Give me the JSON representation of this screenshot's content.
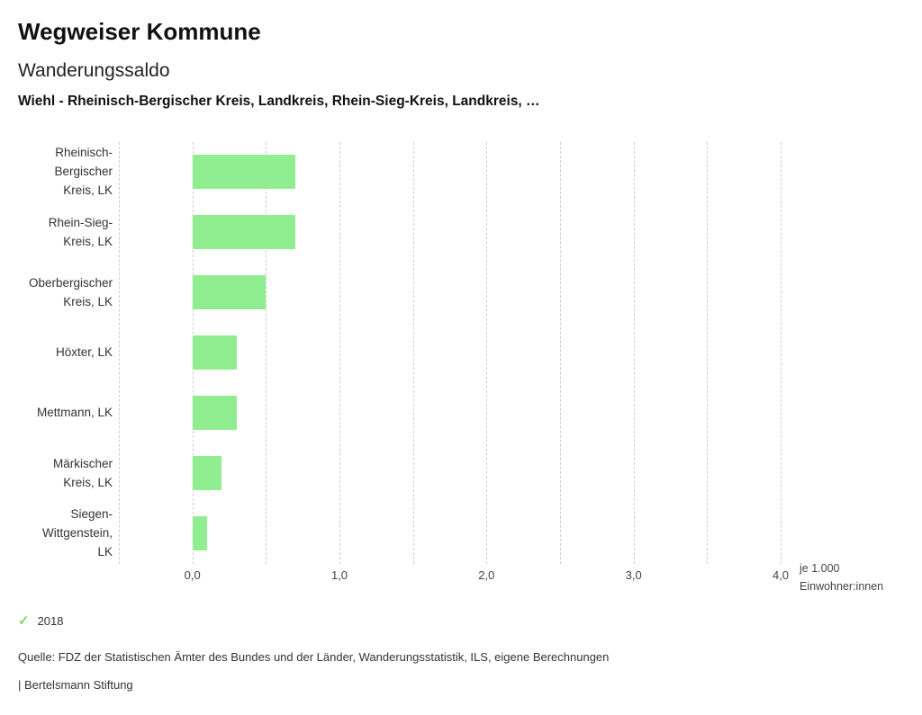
{
  "header": {
    "title": "Wegweiser Kommune",
    "subtitle": "Wanderungssaldo",
    "selection": "Wiehl - Rheinisch-Bergischer Kreis, Landkreis, Rhein-Sieg-Kreis, Landkreis, …"
  },
  "chart_data": {
    "type": "bar",
    "orientation": "horizontal",
    "title": "Wanderungssaldo",
    "categories": [
      "Rheinisch-\nBergischer\nKreis, LK",
      "Rhein-Sieg-\nKreis, LK",
      "Oberbergischer\nKreis, LK",
      "Höxter, LK",
      "Mettmann, LK",
      "Märkischer\nKreis, LK",
      "Siegen-\nWittgenstein,\nLK"
    ],
    "series": [
      {
        "name": "2018",
        "values": [
          0.7,
          0.7,
          0.5,
          0.3,
          0.3,
          0.2,
          0.1
        ]
      }
    ],
    "xlabel": "je 1.000 Einwohner:innen",
    "ylabel": "",
    "xlim": [
      -0.5,
      4.0
    ],
    "x_ticks": [
      0.0,
      1.0,
      2.0,
      3.0,
      4.0
    ],
    "x_tick_labels": [
      "0,0",
      "1,0",
      "2,0",
      "3,0",
      "4,0"
    ],
    "gridline_step": 0.5,
    "grid": "vertical-dashed",
    "legend_position": "bottom-left",
    "bar_color": "#90ee90"
  },
  "legend": {
    "check_icon": "✓",
    "check_icon_color": "#7ed957",
    "label": "2018"
  },
  "footer": {
    "source": "Quelle: FDZ der Statistischen Ämter des Bundes und der Länder, Wanderungsstatistik, ILS, eigene Berechnungen",
    "brand": "| Bertelsmann Stiftung"
  }
}
